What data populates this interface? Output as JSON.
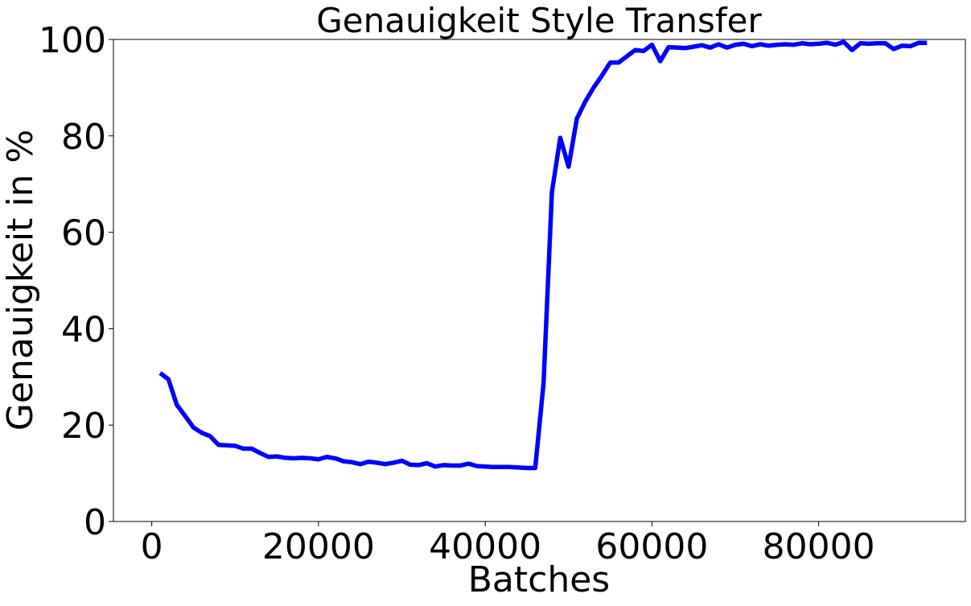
{
  "chart_data": {
    "type": "line",
    "title": "Genauigkeit Style Transfer",
    "xlabel": "Batches",
    "ylabel": "Genauigkeit in %",
    "xlim": [
      -4600,
      97600
    ],
    "ylim": [
      0,
      100
    ],
    "xticks": [
      0,
      20000,
      40000,
      60000,
      80000
    ],
    "yticks": [
      0,
      20,
      40,
      60,
      80,
      100
    ],
    "grid": false,
    "legend": "none",
    "series": [
      {
        "color": "#0000ff",
        "x": [
          1000,
          2000,
          3000,
          4000,
          5000,
          6000,
          7000,
          8000,
          9000,
          10000,
          11000,
          12000,
          13000,
          14000,
          15000,
          16000,
          17000,
          18000,
          19000,
          20000,
          21000,
          22000,
          23000,
          24000,
          25000,
          26000,
          27000,
          28000,
          29000,
          30000,
          31000,
          32000,
          33000,
          34000,
          35000,
          36000,
          37000,
          38000,
          39000,
          40000,
          41000,
          42000,
          43000,
          44000,
          45000,
          46000,
          47000,
          48000,
          49000,
          50000,
          51000,
          52000,
          53000,
          54000,
          55000,
          56000,
          57000,
          58000,
          59000,
          60000,
          61000,
          62000,
          63000,
          64000,
          65000,
          66000,
          67000,
          68000,
          69000,
          70000,
          71000,
          72000,
          73000,
          74000,
          75000,
          76000,
          77000,
          78000,
          79000,
          80000,
          81000,
          82000,
          83000,
          84000,
          85000,
          86000,
          87000,
          88000,
          89000,
          90000,
          91000,
          92000,
          93000
        ],
        "y": [
          30.8,
          29.5,
          24.2,
          21.9,
          19.5,
          18.4,
          17.7,
          15.9,
          15.8,
          15.7,
          15.1,
          15.1,
          14.2,
          13.4,
          13.5,
          13.2,
          13.1,
          13.2,
          13.1,
          12.9,
          13.4,
          13.1,
          12.5,
          12.3,
          11.9,
          12.4,
          12.2,
          11.9,
          12.2,
          12.6,
          11.8,
          11.7,
          12.1,
          11.4,
          11.7,
          11.6,
          11.6,
          12.0,
          11.5,
          11.4,
          11.3,
          11.3,
          11.3,
          11.2,
          11.1,
          11.1,
          28.7,
          68.3,
          79.6,
          73.6,
          83.6,
          87.1,
          90.0,
          92.5,
          95.2,
          95.2,
          96.5,
          97.8,
          97.6,
          98.9,
          95.5,
          98.4,
          98.3,
          98.2,
          98.5,
          98.8,
          98.3,
          99.0,
          98.3,
          98.9,
          99.1,
          98.6,
          99.0,
          98.7,
          98.9,
          99.0,
          98.9,
          99.2,
          99.0,
          99.1,
          99.3,
          98.9,
          99.5,
          97.8,
          99.2,
          99.1,
          99.2,
          99.2,
          98.0,
          98.7,
          98.6,
          99.3,
          99.3
        ]
      }
    ]
  }
}
